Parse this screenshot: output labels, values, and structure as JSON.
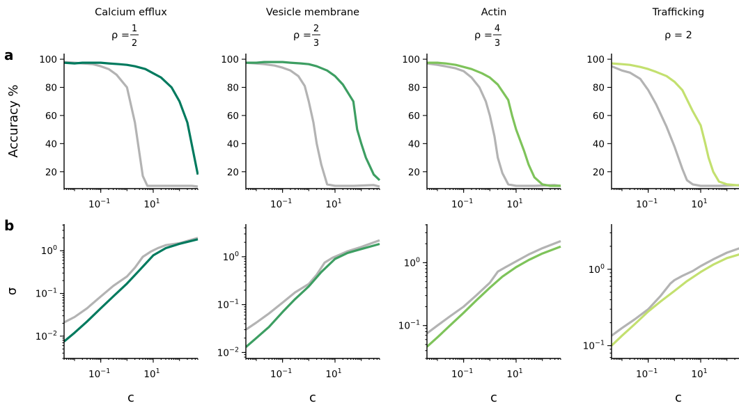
{
  "row_letters": [
    "a",
    "b"
  ],
  "columns": [
    {
      "title": "Calcium efflux",
      "rho": {
        "prefix": "ρ = ",
        "num": "1",
        "den": "2",
        "text": ""
      }
    },
    {
      "title": "Vesicle membrane",
      "rho": {
        "prefix": "ρ = ",
        "num": "2",
        "den": "3",
        "text": ""
      }
    },
    {
      "title": "Actin",
      "rho": {
        "prefix": "ρ = ",
        "num": "4",
        "den": "3",
        "text": ""
      }
    },
    {
      "title": "Trafficking",
      "rho": {
        "prefix": "ρ = ",
        "num": "",
        "den": "",
        "text": "2"
      }
    }
  ],
  "colors": {
    "baseline": "#b3b3b3",
    "series": [
      "#007a5e",
      "#3d9e62",
      "#7ec35a",
      "#c3e06f"
    ]
  },
  "chart_data": [
    {
      "type": "line",
      "row": "a",
      "column": 0,
      "ylabel": "Accuracy %",
      "xlabel": "",
      "xscale": "log",
      "xlim": [
        0.004,
        500
      ],
      "ylim": [
        8,
        104
      ],
      "xticks": [
        {
          "value": 0.1,
          "base": "10",
          "exp": "−1"
        },
        {
          "value": 10,
          "base": "10",
          "exp": "1"
        }
      ],
      "yticks": [
        {
          "value": 20,
          "label": "20"
        },
        {
          "value": 40,
          "label": "40"
        },
        {
          "value": 60,
          "label": "60"
        },
        {
          "value": 80,
          "label": "80"
        },
        {
          "value": 100,
          "label": "100"
        }
      ],
      "series": [
        {
          "role": "baseline",
          "x": [
            0.004,
            0.01,
            0.02,
            0.05,
            0.1,
            0.2,
            0.4,
            1,
            2,
            4,
            6,
            10,
            20,
            50,
            100,
            300,
            500
          ],
          "y": [
            98,
            97.5,
            97,
            96.5,
            95,
            93,
            89,
            80,
            55,
            17,
            10,
            10,
            10,
            10,
            10,
            10,
            9.5
          ]
        },
        {
          "role": "model",
          "x": [
            0.004,
            0.01,
            0.02,
            0.05,
            0.1,
            0.2,
            0.5,
            1,
            2,
            5,
            10,
            20,
            50,
            100,
            200,
            500
          ],
          "y": [
            97.5,
            97,
            97.5,
            97.5,
            97.5,
            97,
            96.5,
            96,
            95,
            93,
            90,
            87,
            80,
            70,
            55,
            18
          ]
        }
      ]
    },
    {
      "type": "line",
      "row": "a",
      "column": 1,
      "xlabel": "",
      "xscale": "log",
      "xlim": [
        0.004,
        500
      ],
      "ylim": [
        8,
        104
      ],
      "xticks": [
        {
          "value": 0.1,
          "base": "10",
          "exp": "−1"
        },
        {
          "value": 10,
          "base": "10",
          "exp": "1"
        }
      ],
      "yticks": [
        {
          "value": 20,
          "label": "20"
        },
        {
          "value": 40,
          "label": "40"
        },
        {
          "value": 60,
          "label": "60"
        },
        {
          "value": 80,
          "label": "80"
        },
        {
          "value": 100,
          "label": "100"
        }
      ],
      "series": [
        {
          "role": "baseline",
          "x": [
            0.004,
            0.01,
            0.02,
            0.05,
            0.1,
            0.2,
            0.4,
            0.7,
            1,
            1.5,
            2,
            3,
            5,
            10,
            50,
            300,
            500
          ],
          "y": [
            97.5,
            97,
            96.5,
            95.5,
            94,
            92,
            88,
            81,
            70,
            55,
            40,
            25,
            11,
            10,
            10,
            10.5,
            9.5
          ]
        },
        {
          "role": "model",
          "x": [
            0.004,
            0.01,
            0.02,
            0.05,
            0.1,
            0.2,
            0.5,
            1,
            2,
            5,
            10,
            20,
            50,
            70,
            100,
            150,
            200,
            300,
            500
          ],
          "y": [
            97.5,
            97.5,
            98,
            98,
            98,
            97.5,
            97,
            96.5,
            95,
            92,
            88,
            82,
            70,
            50,
            40,
            30,
            25,
            18,
            14
          ]
        }
      ]
    },
    {
      "type": "line",
      "row": "a",
      "column": 2,
      "xlabel": "",
      "xscale": "log",
      "xlim": [
        0.004,
        500
      ],
      "ylim": [
        8,
        104
      ],
      "xticks": [
        {
          "value": 0.1,
          "base": "10",
          "exp": "−1"
        },
        {
          "value": 10,
          "base": "10",
          "exp": "1"
        }
      ],
      "yticks": [
        {
          "value": 20,
          "label": "20"
        },
        {
          "value": 40,
          "label": "40"
        },
        {
          "value": 60,
          "label": "60"
        },
        {
          "value": 80,
          "label": "80"
        },
        {
          "value": 100,
          "label": "100"
        }
      ],
      "series": [
        {
          "role": "baseline",
          "x": [
            0.004,
            0.01,
            0.02,
            0.05,
            0.1,
            0.2,
            0.4,
            0.7,
            1,
            1.5,
            2,
            3,
            5,
            10,
            50,
            300,
            500
          ],
          "y": [
            97,
            96,
            95,
            93.5,
            91.5,
            87,
            80,
            70,
            60,
            45,
            30,
            19,
            11,
            10,
            10,
            10.5,
            10
          ]
        },
        {
          "role": "model",
          "x": [
            0.004,
            0.01,
            0.02,
            0.05,
            0.1,
            0.2,
            0.5,
            1,
            2,
            5,
            7,
            10,
            20,
            30,
            50,
            100,
            200,
            500
          ],
          "y": [
            97.5,
            97.5,
            97,
            96,
            94.5,
            93,
            90,
            87,
            82,
            71,
            60,
            50,
            35,
            25,
            16,
            11,
            10,
            10
          ]
        }
      ]
    },
    {
      "type": "line",
      "row": "a",
      "column": 3,
      "xlabel": "",
      "xscale": "log",
      "xlim": [
        0.004,
        500
      ],
      "ylim": [
        8,
        104
      ],
      "xticks": [
        {
          "value": 0.1,
          "base": "10",
          "exp": "−1"
        },
        {
          "value": 10,
          "base": "10",
          "exp": "1"
        }
      ],
      "yticks": [
        {
          "value": 20,
          "label": "20"
        },
        {
          "value": 40,
          "label": "40"
        },
        {
          "value": 60,
          "label": "60"
        },
        {
          "value": 80,
          "label": "80"
        },
        {
          "value": 100,
          "label": "100"
        }
      ],
      "series": [
        {
          "role": "baseline",
          "x": [
            0.004,
            0.01,
            0.02,
            0.05,
            0.1,
            0.2,
            0.5,
            1,
            2,
            3,
            5,
            10,
            50,
            300,
            500
          ],
          "y": [
            95,
            92,
            90.5,
            86,
            78,
            68,
            52,
            38,
            22,
            14,
            11,
            10,
            10,
            10.5,
            10
          ]
        },
        {
          "role": "model",
          "x": [
            0.004,
            0.01,
            0.02,
            0.05,
            0.1,
            0.2,
            0.5,
            1,
            2,
            5,
            10,
            15,
            20,
            30,
            50,
            100,
            200,
            500
          ],
          "y": [
            97,
            96.5,
            96,
            94.5,
            93,
            91,
            88,
            84,
            78,
            63,
            53,
            40,
            30,
            20,
            13,
            11,
            10.5,
            10
          ]
        }
      ]
    },
    {
      "type": "line",
      "row": "b",
      "column": 0,
      "ylabel": "σ",
      "xlabel": "c",
      "xscale": "log",
      "yscale": "log",
      "xlim": [
        0.004,
        500
      ],
      "ylim": [
        0.003,
        4.2
      ],
      "xticks": [
        {
          "value": 0.1,
          "base": "10",
          "exp": "−1"
        },
        {
          "value": 10,
          "base": "10",
          "exp": "1"
        }
      ],
      "yticks": [
        {
          "value": 0.01,
          "base": "10",
          "exp": "−2"
        },
        {
          "value": 0.1,
          "base": "10",
          "exp": "−1"
        },
        {
          "value": 1,
          "base": "10",
          "exp": "0"
        }
      ],
      "series": [
        {
          "role": "baseline",
          "x": [
            0.004,
            0.01,
            0.03,
            0.1,
            0.3,
            1,
            2,
            4,
            8,
            15,
            30,
            100,
            500
          ],
          "y": [
            0.021,
            0.028,
            0.045,
            0.085,
            0.15,
            0.25,
            0.4,
            0.72,
            0.95,
            1.15,
            1.35,
            1.5,
            2.0
          ]
        },
        {
          "role": "model",
          "x": [
            0.004,
            0.01,
            0.03,
            0.1,
            0.3,
            1,
            3,
            10,
            30,
            100,
            500
          ],
          "y": [
            0.0075,
            0.012,
            0.022,
            0.045,
            0.085,
            0.17,
            0.35,
            0.78,
            1.15,
            1.45,
            1.85
          ]
        }
      ]
    },
    {
      "type": "line",
      "row": "b",
      "column": 1,
      "xlabel": "c",
      "xscale": "log",
      "yscale": "log",
      "xlim": [
        0.004,
        500
      ],
      "ylim": [
        0.0075,
        4.8
      ],
      "xticks": [
        {
          "value": 0.1,
          "base": "10",
          "exp": "−1"
        },
        {
          "value": 10,
          "base": "10",
          "exp": "1"
        }
      ],
      "yticks": [
        {
          "value": 0.01,
          "base": "10",
          "exp": "−2"
        },
        {
          "value": 0.1,
          "base": "10",
          "exp": "−1"
        },
        {
          "value": 1,
          "base": "10",
          "exp": "0"
        }
      ],
      "series": [
        {
          "role": "baseline",
          "x": [
            0.004,
            0.01,
            0.03,
            0.1,
            0.3,
            1,
            2,
            4,
            8,
            15,
            30,
            100,
            500
          ],
          "y": [
            0.03,
            0.042,
            0.065,
            0.11,
            0.18,
            0.27,
            0.42,
            0.75,
            0.95,
            1.1,
            1.3,
            1.6,
            2.2
          ]
        },
        {
          "role": "model",
          "x": [
            0.004,
            0.01,
            0.03,
            0.1,
            0.3,
            1,
            3,
            10,
            30,
            100,
            500
          ],
          "y": [
            0.013,
            0.02,
            0.034,
            0.07,
            0.13,
            0.24,
            0.48,
            0.9,
            1.2,
            1.45,
            1.85
          ]
        }
      ]
    },
    {
      "type": "line",
      "row": "b",
      "column": 2,
      "xlabel": "c",
      "xscale": "log",
      "yscale": "log",
      "xlim": [
        0.004,
        500
      ],
      "ylim": [
        0.03,
        4.1
      ],
      "xticks": [
        {
          "value": 0.1,
          "base": "10",
          "exp": "−1"
        },
        {
          "value": 10,
          "base": "10",
          "exp": "1"
        }
      ],
      "yticks": [
        {
          "value": 0.1,
          "base": "10",
          "exp": "−1"
        },
        {
          "value": 1,
          "base": "10",
          "exp": "0"
        }
      ],
      "series": [
        {
          "role": "baseline",
          "x": [
            0.004,
            0.01,
            0.03,
            0.1,
            0.3,
            1,
            2,
            4,
            10,
            30,
            100,
            500
          ],
          "y": [
            0.075,
            0.1,
            0.14,
            0.2,
            0.3,
            0.48,
            0.72,
            0.85,
            1.05,
            1.35,
            1.7,
            2.2
          ]
        },
        {
          "role": "model",
          "x": [
            0.004,
            0.01,
            0.03,
            0.1,
            0.3,
            1,
            3,
            10,
            30,
            100,
            500
          ],
          "y": [
            0.046,
            0.065,
            0.1,
            0.16,
            0.25,
            0.4,
            0.6,
            0.85,
            1.1,
            1.4,
            1.8
          ]
        }
      ]
    },
    {
      "type": "line",
      "row": "b",
      "column": 3,
      "xlabel": "c",
      "xscale": "log",
      "yscale": "log",
      "xlim": [
        0.004,
        500
      ],
      "ylim": [
        0.068,
        3.9
      ],
      "xticks": [
        {
          "value": 0.1,
          "base": "10",
          "exp": "−1"
        },
        {
          "value": 10,
          "base": "10",
          "exp": "1"
        }
      ],
      "yticks": [
        {
          "value": 0.1,
          "base": "10",
          "exp": "−1"
        },
        {
          "value": 1,
          "base": "10",
          "exp": "0"
        }
      ],
      "series": [
        {
          "role": "baseline",
          "x": [
            0.004,
            0.01,
            0.03,
            0.1,
            0.3,
            0.7,
            1,
            2,
            5,
            10,
            30,
            100,
            500
          ],
          "y": [
            0.135,
            0.17,
            0.22,
            0.3,
            0.45,
            0.65,
            0.72,
            0.82,
            0.95,
            1.1,
            1.35,
            1.65,
            2.0
          ]
        },
        {
          "role": "model",
          "x": [
            0.004,
            0.01,
            0.03,
            0.1,
            0.3,
            1,
            3,
            10,
            30,
            100,
            500
          ],
          "y": [
            0.1,
            0.135,
            0.19,
            0.28,
            0.38,
            0.52,
            0.7,
            0.92,
            1.15,
            1.4,
            1.65
          ]
        }
      ]
    }
  ]
}
